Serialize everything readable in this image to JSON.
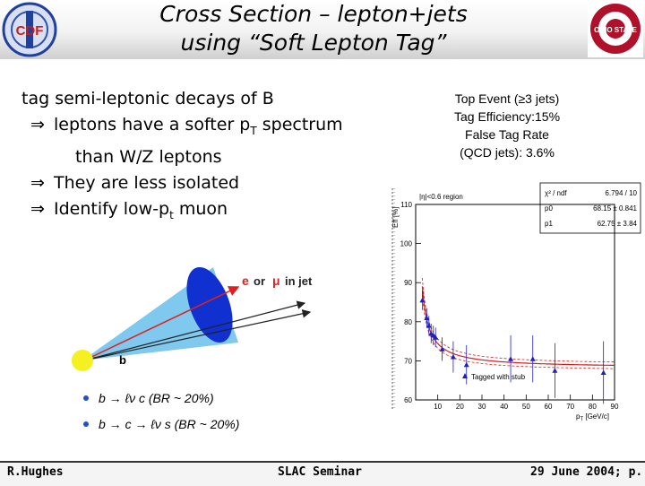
{
  "header": {
    "title_line1": "Cross Section – lepton+jets",
    "title_line2": "using “Soft Lepton Tag”",
    "logo_left_text": "CDF",
    "logo_right_text": "OHIO STATE"
  },
  "left": {
    "line1": "tag semi-leptonic decays of B",
    "arrow": "⇒",
    "bullet1a": "leptons have a softer p",
    "bullet1a_sub": "T",
    "bullet1a_end": " spectrum",
    "bullet1b": "than W/Z leptons",
    "bullet2": "They are less isolated",
    "bullet3": "Identify low-p",
    "bullet3_sub": "t",
    "bullet3_end": " muon"
  },
  "right": {
    "line1": "Top Event (≥3 jets)",
    "line2": "Tag Efficiency:15%",
    "line3": "False Tag Rate",
    "line4": "(QCD jets): 3.6%"
  },
  "diagram": {
    "lepton_label_e": "e",
    "lepton_label_or": "or",
    "lepton_label_mu": "μ",
    "lepton_label_injet": "in jet",
    "b_label": "b",
    "decay1": "b → ℓν c  (BR ~ 20%)",
    "decay2": "b → c → ℓν s  (BR ~ 20%)",
    "colors": {
      "cone": "#7fc8ee",
      "disk": "#1030d0",
      "b_quark": "#f5f020",
      "lepton_arrow": "#e02020"
    }
  },
  "chart_data": {
    "type": "scatter",
    "region_label": "|η|<0.6 region",
    "ylabel": "Eff [%]",
    "xlabel": "p",
    "xlabel_sub": "T",
    "xlabel_unit": " [GeV/c]",
    "xlim": [
      0,
      90
    ],
    "ylim": [
      60,
      110
    ],
    "x_ticks": [
      "10",
      "20",
      "30",
      "40",
      "50",
      "60",
      "70",
      "80",
      "90"
    ],
    "y_ticks": [
      "60",
      "70",
      "80",
      "90",
      "100",
      "110"
    ],
    "points": [
      {
        "x": 3,
        "y": 85.5,
        "err": 2.5
      },
      {
        "x": 5,
        "y": 81,
        "err": 2.5
      },
      {
        "x": 6,
        "y": 79,
        "err": 2.5
      },
      {
        "x": 7,
        "y": 77,
        "err": 2.5
      },
      {
        "x": 8,
        "y": 76.5,
        "err": 2.5
      },
      {
        "x": 9,
        "y": 76,
        "err": 2.5
      },
      {
        "x": 12,
        "y": 73,
        "err": 3
      },
      {
        "x": 17,
        "y": 71,
        "err": 4
      },
      {
        "x": 23,
        "y": 69,
        "err": 5
      },
      {
        "x": 43,
        "y": 70.5,
        "err": 6
      },
      {
        "x": 53,
        "y": 70.5,
        "err": 6
      },
      {
        "x": 63,
        "y": 67.5,
        "err": 7
      },
      {
        "x": 85,
        "y": 67,
        "err": 8
      }
    ],
    "fit": {
      "p0": 68.15,
      "p1": 62.75
    },
    "stats": [
      {
        "name": "χ² / ndf",
        "value": "6.794 / 10"
      },
      {
        "name": "p0",
        "value": "68.15 ± 0.841"
      },
      {
        "name": "p1",
        "value": "62.75 ± 3.84"
      }
    ],
    "legend": "Tagged with stub",
    "colors": {
      "points": "#2020c0",
      "fit": "#d02020"
    }
  },
  "footer": {
    "left": "R.Hughes",
    "middle": "SLAC Seminar",
    "right": "29 June 2004; p."
  }
}
